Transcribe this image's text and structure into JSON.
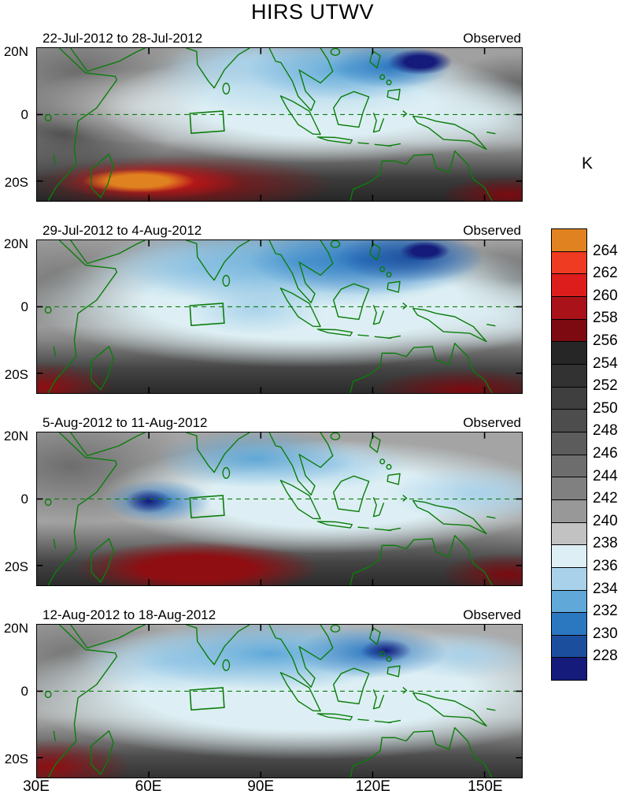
{
  "chart_data": {
    "type": "heatmap",
    "title": "HIRS UTWV",
    "panels": [
      {
        "label": "22-Jul-2012 to 28-Jul-2012",
        "annotation": "Observed"
      },
      {
        "label": "29-Jul-2012 to 4-Aug-2012",
        "annotation": "Observed"
      },
      {
        "label": "5-Aug-2012 to 11-Aug-2012",
        "annotation": "Observed"
      },
      {
        "label": "12-Aug-2012 to 18-Aug-2012",
        "annotation": "Observed"
      }
    ],
    "x_axis": {
      "ticks": [
        "30E",
        "60E",
        "90E",
        "120E",
        "150E"
      ],
      "range_deg_east": [
        30,
        160
      ]
    },
    "y_axis": {
      "ticks": [
        "20N",
        "0",
        "20S"
      ],
      "range_deg_lat": [
        -26,
        20
      ]
    },
    "colorbar": {
      "label": "K",
      "ticks": [
        264,
        262,
        260,
        258,
        256,
        254,
        252,
        250,
        248,
        246,
        244,
        242,
        240,
        238,
        236,
        234,
        232,
        230,
        228
      ],
      "colors_top_to_bottom": [
        "#e0821f",
        "#ee3b22",
        "#dd1c1c",
        "#a81218",
        "#7c0a10",
        "#262626",
        "#323232",
        "#3f3f3f",
        "#4d4d4d",
        "#5c5c5c",
        "#6d6d6d",
        "#808080",
        "#989898",
        "#c2c2c2",
        "#ddeff4",
        "#a9d2ea",
        "#5fa8d8",
        "#2b77c0",
        "#1c4e9e",
        "#141b7a"
      ]
    },
    "overlays": {
      "coastlines_color": "#0a7d0a",
      "equator_line": "dashed green line at 0 latitude",
      "region_box": "green box near 72E-80E, 0-5S"
    }
  }
}
